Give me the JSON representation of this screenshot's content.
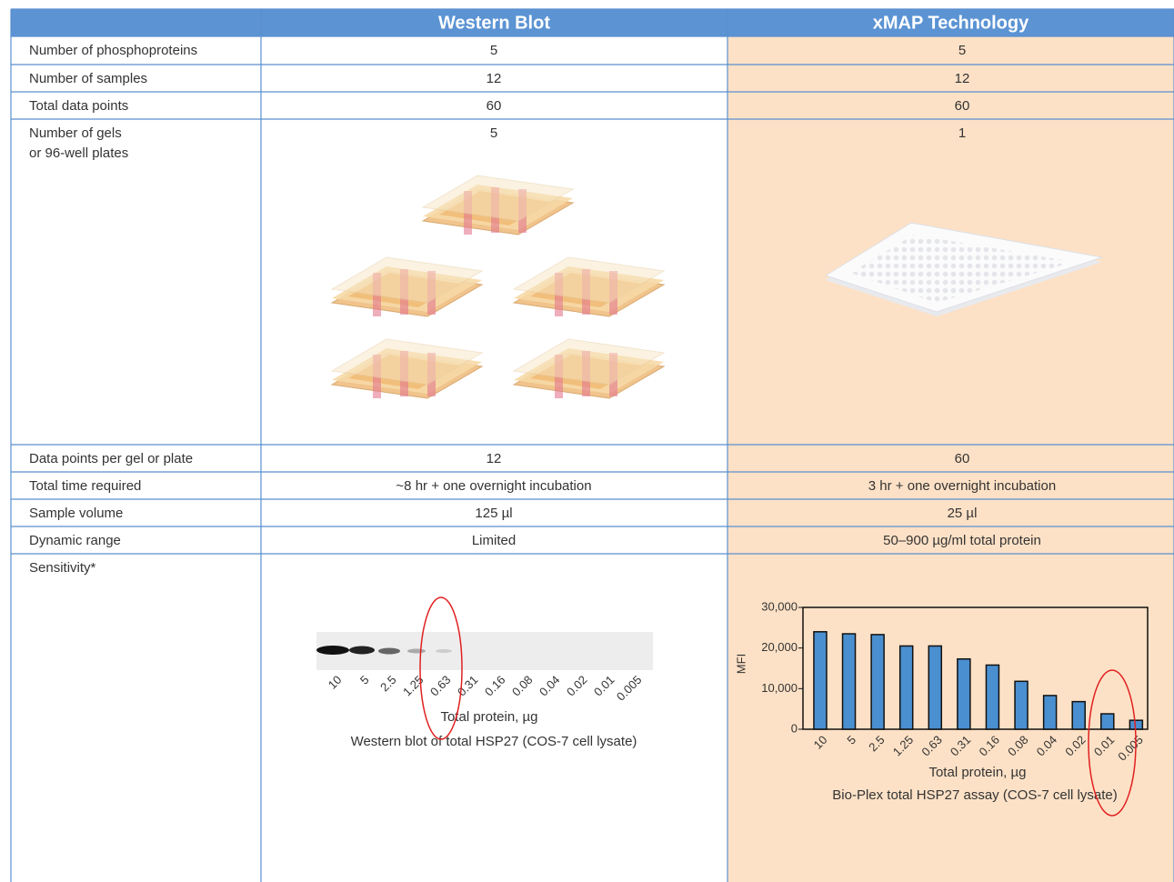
{
  "table": {
    "columns": [
      "Western Blot",
      "xMAP Technology"
    ],
    "rows": [
      {
        "label": [
          "Number of phosphoproteins"
        ],
        "western_blot": "5",
        "xmap": "5"
      },
      {
        "label": [
          "Number of samples"
        ],
        "western_blot": "12",
        "xmap": "12"
      },
      {
        "label": [
          "Total data points"
        ],
        "western_blot": "60",
        "xmap": "60"
      },
      {
        "label": [
          "Number of gels",
          "or 96-well plates"
        ],
        "western_blot": "5",
        "xmap": "1"
      },
      {
        "label": [
          "Data points per gel or plate"
        ],
        "western_blot": "12",
        "xmap": "60"
      },
      {
        "label": [
          "Total time required"
        ],
        "western_blot": "~8 hr + one overnight incubation",
        "xmap": "3 hr + one overnight incubation"
      },
      {
        "label": [
          "Sample volume"
        ],
        "western_blot": "125 µl",
        "xmap": "25 µl"
      },
      {
        "label": [
          "Dynamic range"
        ],
        "western_blot": "Limited",
        "xmap": "50–900 µg/ml total protein"
      },
      {
        "label": [
          "Sensitivity*"
        ]
      }
    ]
  },
  "western_blot_figure": {
    "lanes": [
      "10",
      "5",
      "2.5",
      "1.25",
      "0.63",
      "0.31",
      "0.16",
      "0.08",
      "0.04",
      "0.02",
      "0.01",
      "0.005"
    ],
    "x_label": "Total protein, µg",
    "caption": "Western blot of total HSP27 (COS-7 cell lysate)"
  },
  "chart_data": {
    "type": "bar",
    "categories": [
      "10",
      "5",
      "2.5",
      "1.25",
      "0.63",
      "0.31",
      "0.16",
      "0.08",
      "0.04",
      "0.02",
      "0.01",
      "0.005"
    ],
    "values": [
      24000,
      23500,
      23300,
      20500,
      20500,
      17300,
      15800,
      11800,
      8300,
      6800,
      3800,
      2200
    ],
    "color": "#4a8fd0",
    "ylim": [
      0,
      30000
    ],
    "yticks": [
      0,
      {
        "value": 10000,
        "label": "10,000"
      },
      {
        "value": 20000,
        "label": "20,000"
      },
      {
        "value": 30000,
        "label": "30,000"
      }
    ],
    "y_label": "MFI",
    "x_label": "Total protein, µg",
    "caption": "Bio-Plex total HSP27 assay (COS-7 cell lysate)"
  }
}
